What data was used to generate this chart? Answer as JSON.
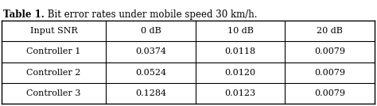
{
  "title_bold": "Table 1.",
  "title_normal": " Bit error rates under mobile speed 30 km/h.",
  "col_headers": [
    "Input SNR",
    "0 dB",
    "10 dB",
    "20 dB"
  ],
  "rows": [
    [
      "Controller 1",
      "0.0374",
      "0.0118",
      "0.0079"
    ],
    [
      "Controller 2",
      "0.0524",
      "0.0120",
      "0.0079"
    ],
    [
      "Controller 3",
      "0.1284",
      "0.0123",
      "0.0079"
    ]
  ],
  "background_color": "#ffffff",
  "text_color": "#000000",
  "font_size": 8.0,
  "title_font_size": 8.5,
  "figsize": [
    4.74,
    1.34
  ],
  "dpi": 100
}
